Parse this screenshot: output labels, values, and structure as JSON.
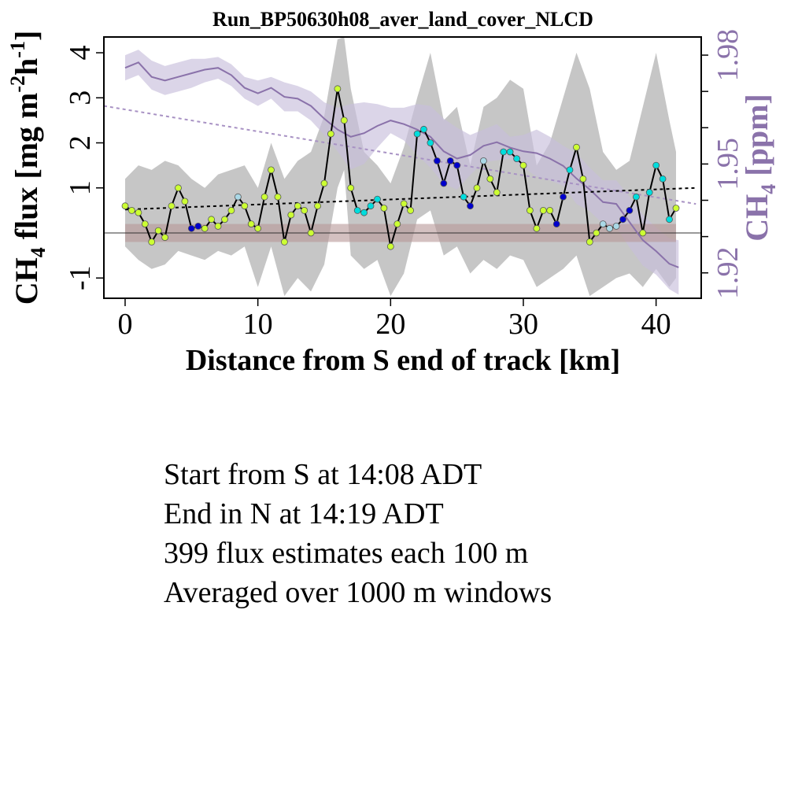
{
  "chart_data": {
    "type": "line",
    "title": "Run_BP50630h08_aver_land_cover_NLCD",
    "xlabel": "Distance from S end of track [km]",
    "ylabel_left": {
      "base": "CH",
      "sub": "4",
      "text": " flux [mg m",
      "sup1": "-2",
      "mid": "h",
      "sup2": "-1",
      "end": "]"
    },
    "ylabel_right": {
      "base": "CH",
      "sub": "4",
      "text": " [ppm]"
    },
    "x_ticks": [
      0,
      10,
      20,
      30,
      40
    ],
    "y_left_ticks": [
      -1,
      1,
      2,
      3,
      4
    ],
    "y_left_tick_labels": [
      "-1",
      "1",
      "2",
      "3",
      "4"
    ],
    "y_right_ticks": [
      1.92,
      1.95,
      1.98
    ],
    "y_right_tick_labels": [
      "1.92",
      "1.95",
      "1.98"
    ],
    "xlim": [
      -1.6,
      43.4
    ],
    "ylim_left": [
      -1.45,
      4.35
    ],
    "ylim_right": [
      1.913,
      1.985
    ],
    "colors": {
      "flux_line": "#000000",
      "ch4_line": "#8a72aa",
      "ch4_band": "#c8bedc",
      "uncertainty": "#c6c6c6",
      "zero_band": "#b89898",
      "land_cover": [
        "#ccff33",
        "#0000cc",
        "#00dddd",
        "#aad8e6"
      ]
    },
    "zero_band": [
      -0.2,
      0.2
    ],
    "flux_trend": {
      "x": [
        0,
        43
      ],
      "y": [
        0.52,
        1.0
      ]
    },
    "ch4_trend": {
      "x": [
        -1.6,
        43
      ],
      "y": [
        1.966,
        1.939
      ]
    },
    "flux": {
      "x": [
        0,
        0.5,
        1,
        1.5,
        2,
        2.5,
        3,
        3.5,
        4,
        4.5,
        5,
        5.5,
        6,
        6.5,
        7,
        7.5,
        8,
        8.5,
        9,
        9.5,
        10,
        10.5,
        11,
        11.5,
        12,
        12.5,
        13,
        13.5,
        14,
        14.5,
        15,
        15.5,
        16,
        16.5,
        17,
        17.5,
        18,
        18.5,
        19,
        19.5,
        20,
        20.5,
        21,
        21.5,
        22,
        22.5,
        23,
        23.5,
        24,
        24.5,
        25,
        25.5,
        26,
        26.5,
        27,
        27.5,
        28,
        28.5,
        29,
        29.5,
        30,
        30.5,
        31,
        31.5,
        32,
        32.5,
        33,
        33.5,
        34,
        34.5,
        35,
        35.5,
        36,
        36.5,
        37,
        37.5,
        38,
        38.5,
        39,
        39.5,
        40,
        40.5,
        41,
        41.5
      ],
      "y": [
        0.6,
        0.5,
        0.45,
        0.2,
        -0.2,
        0.05,
        -0.1,
        0.6,
        1.0,
        0.7,
        0.1,
        0.15,
        0.1,
        0.3,
        0.15,
        0.3,
        0.5,
        0.8,
        0.6,
        0.2,
        0.1,
        0.8,
        1.4,
        0.8,
        -0.2,
        0.4,
        0.6,
        0.5,
        0.0,
        0.6,
        1.1,
        2.2,
        3.2,
        2.5,
        1.0,
        0.5,
        0.45,
        0.6,
        0.75,
        0.55,
        -0.3,
        0.2,
        0.65,
        0.5,
        2.2,
        2.3,
        2.0,
        1.6,
        1.1,
        1.6,
        1.5,
        0.8,
        0.6,
        1.0,
        1.6,
        1.2,
        0.9,
        1.8,
        1.8,
        1.65,
        1.5,
        0.5,
        0.1,
        0.5,
        0.5,
        0.2,
        0.8,
        1.4,
        1.9,
        1.2,
        -0.2,
        0.0,
        0.2,
        0.1,
        0.15,
        0.3,
        0.5,
        0.8,
        0.0,
        0.9,
        1.5,
        1.2,
        0.3,
        0.55
      ],
      "land_cover": [
        0,
        0,
        0,
        0,
        0,
        0,
        0,
        0,
        0,
        0,
        1,
        1,
        0,
        0,
        0,
        0,
        0,
        3,
        0,
        0,
        0,
        0,
        0,
        0,
        0,
        0,
        0,
        0,
        0,
        0,
        0,
        0,
        0,
        0,
        0,
        2,
        2,
        2,
        2,
        0,
        0,
        0,
        0,
        0,
        2,
        2,
        2,
        1,
        1,
        1,
        1,
        2,
        1,
        0,
        3,
        0,
        0,
        2,
        2,
        2,
        0,
        0,
        0,
        0,
        0,
        1,
        1,
        2,
        0,
        0,
        0,
        0,
        3,
        3,
        3,
        1,
        1,
        2,
        0,
        2,
        2,
        2,
        2,
        0
      ]
    },
    "flux_uncertainty": {
      "x": [
        0,
        1,
        2,
        3,
        4,
        5,
        6,
        7,
        8,
        9,
        10,
        11,
        12,
        13,
        14,
        15,
        16,
        16.5,
        17,
        18,
        19,
        20,
        21,
        22,
        23,
        24,
        25,
        26,
        27,
        28,
        29,
        30,
        31,
        32,
        33,
        34,
        35,
        36,
        37,
        38,
        39,
        40,
        41,
        41.5
      ],
      "upper": [
        1.2,
        1.5,
        1.4,
        1.6,
        1.5,
        1.2,
        1.0,
        1.3,
        1.4,
        1.5,
        1.0,
        2.0,
        1.2,
        1.6,
        1.8,
        2.6,
        4.3,
        4.35,
        3.2,
        1.8,
        1.5,
        1.1,
        1.9,
        3.0,
        4.0,
        2.5,
        2.8,
        1.5,
        2.8,
        3.0,
        3.4,
        3.2,
        1.5,
        2.0,
        3.0,
        4.0,
        3.2,
        1.8,
        1.4,
        1.6,
        2.8,
        4.0,
        2.5,
        1.8
      ],
      "lower": [
        -0.3,
        -0.6,
        -0.8,
        -0.7,
        -0.4,
        -0.5,
        -0.6,
        -0.4,
        -0.5,
        -0.3,
        -1.2,
        -0.3,
        -1.4,
        -1.0,
        -1.3,
        -0.7,
        1.0,
        1.4,
        -0.5,
        -0.8,
        -0.6,
        -1.4,
        -0.9,
        0.3,
        0.5,
        -0.5,
        -0.3,
        -0.9,
        -0.6,
        -0.8,
        -0.5,
        -0.6,
        -1.2,
        -1.0,
        -0.8,
        -0.5,
        -1.4,
        -1.2,
        -1.0,
        -0.9,
        -1.2,
        -0.8,
        -1.2,
        -1.0
      ]
    },
    "ch4": {
      "x": [
        0,
        1,
        2,
        3,
        4,
        5,
        6,
        7,
        8,
        9,
        10,
        11,
        12,
        13,
        14,
        15,
        16,
        17,
        18,
        19,
        20,
        21,
        22,
        23,
        24,
        25,
        26,
        27,
        28,
        29,
        30,
        31,
        32,
        33,
        34,
        35,
        36,
        37,
        38,
        39,
        40,
        41,
        41.7
      ],
      "y": [
        1.9765,
        1.978,
        1.974,
        1.973,
        1.974,
        1.975,
        1.976,
        1.9765,
        1.9745,
        1.971,
        1.9695,
        1.971,
        1.9685,
        1.968,
        1.966,
        1.9625,
        1.9595,
        1.9575,
        1.9585,
        1.9605,
        1.962,
        1.961,
        1.9595,
        1.9575,
        1.9535,
        1.9515,
        1.9525,
        1.955,
        1.956,
        1.9545,
        1.9535,
        1.953,
        1.9515,
        1.9495,
        1.946,
        1.943,
        1.9395,
        1.939,
        1.934,
        1.929,
        1.926,
        1.9225,
        1.9215
      ],
      "upper": [
        1.98,
        1.9815,
        1.9785,
        1.977,
        1.978,
        1.979,
        1.979,
        1.9795,
        1.9775,
        1.974,
        1.973,
        1.974,
        1.9725,
        1.9715,
        1.97,
        1.967,
        1.9655,
        1.9665,
        1.967,
        1.9665,
        1.9655,
        1.9655,
        1.9665,
        1.966,
        1.9625,
        1.96,
        1.958,
        1.9595,
        1.961,
        1.9575,
        1.958,
        1.9595,
        1.9575,
        1.955,
        1.953,
        1.949,
        1.9455,
        1.9455,
        1.941,
        1.936,
        1.9325,
        1.9295,
        1.929
      ],
      "lower": [
        1.973,
        1.9745,
        1.9705,
        1.969,
        1.97,
        1.971,
        1.9725,
        1.9735,
        1.9715,
        1.968,
        1.966,
        1.968,
        1.9645,
        1.9645,
        1.962,
        1.958,
        1.9535,
        1.9485,
        1.95,
        1.9545,
        1.9585,
        1.9565,
        1.9525,
        1.949,
        1.9445,
        1.943,
        1.947,
        1.9505,
        1.951,
        1.9515,
        1.949,
        1.9465,
        1.9455,
        1.944,
        1.939,
        1.937,
        1.9335,
        1.9325,
        1.927,
        1.922,
        1.9195,
        1.9155,
        1.914
      ]
    }
  },
  "notes": [
    "Start from S at 14:08 ADT",
    "End in N at 14:19 ADT",
    "399 flux estimates each 100 m",
    "Averaged over 1000 m windows"
  ]
}
